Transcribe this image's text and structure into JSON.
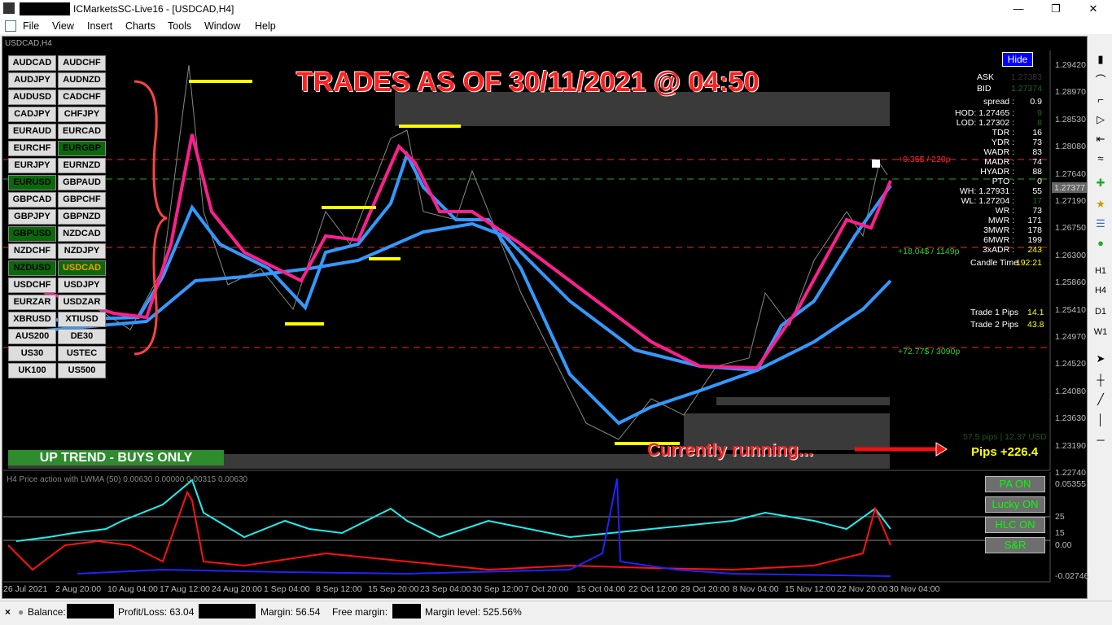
{
  "window": {
    "title": "ICMarketsSC-Live16 - [USDCAD,H4]",
    "controls": [
      "—",
      "❐",
      "✕"
    ]
  },
  "menu": [
    "File",
    "View",
    "Insert",
    "Charts",
    "Tools",
    "Window",
    "Help"
  ],
  "chart": {
    "label": "USDCAD,H4",
    "headline": "TRADES AS OF 30/11/2021 @ 04:50",
    "trend_banner": "UP TREND - BUYS ONLY",
    "running_text": "Currently running...",
    "pips_total": "Pips +226.4",
    "pips_usd": "57.5 pips | 12.37 USD",
    "line_labels": [
      "+18.04$ / 1149p",
      "+72.77$ / 3090p",
      "+0.35$ / 220p"
    ],
    "current_price": "1.27377",
    "price_ticks": [
      "1.29420",
      "1.28970",
      "1.28530",
      "1.28080",
      "1.27640",
      "1.27190",
      "1.26750",
      "1.26300",
      "1.25860",
      "1.25410",
      "1.24970",
      "1.24520",
      "1.24080",
      "1.23630",
      "1.23190",
      "1.22740"
    ],
    "date_ticks": [
      "26 Jul 2021",
      "2 Aug 20:00",
      "10 Aug 04:00",
      "17 Aug 12:00",
      "24 Aug 20:00",
      "1 Sep 04:00",
      "8 Sep 12:00",
      "15 Sep 20:00",
      "23 Sep 04:00",
      "30 Sep 12:00",
      "7 Oct 20:00",
      "15 Oct 04:00",
      "22 Oct 12:00",
      "29 Oct 20:00",
      "8 Nov 04:00",
      "15 Nov 12:00",
      "22 Nov 20:00",
      "30 Nov 04:00"
    ],
    "colors": {
      "bull_ma": "#3399ff",
      "bear_ma": "#ff1f8f",
      "arrow": "#ffff00",
      "headline": "#ff2020",
      "banner_bg": "#2e8b2e"
    }
  },
  "symbols": [
    [
      "AUDCAD",
      "AUDCHF"
    ],
    [
      "AUDJPY",
      "AUDNZD"
    ],
    [
      "AUDUSD",
      "CADCHF"
    ],
    [
      "CADJPY",
      "CHFJPY"
    ],
    [
      "EURAUD",
      "EURCAD"
    ],
    [
      "EURCHF",
      "EURGBP"
    ],
    [
      "EURJPY",
      "EURNZD"
    ],
    [
      "EURUSD",
      "GBPAUD"
    ],
    [
      "GBPCAD",
      "GBPCHF"
    ],
    [
      "GBPJPY",
      "GBPNZD"
    ],
    [
      "GBPUSD",
      "NZDCAD"
    ],
    [
      "NZDCHF",
      "NZDJPY"
    ],
    [
      "NZDUSD",
      "USDCAD"
    ],
    [
      "USDCHF",
      "USDJPY"
    ],
    [
      "EURZAR",
      "USDZAR"
    ],
    [
      "XBRUSD",
      "XTIUSD"
    ],
    [
      "AUS200",
      "DE30"
    ],
    [
      "US30",
      "USTEC"
    ],
    [
      "UK100",
      "US500"
    ]
  ],
  "active_symbols": [
    "EURGBP",
    "EURUSD",
    "GBPUSD",
    "NZDUSD",
    "USDCAD"
  ],
  "info_panel": {
    "hide": "Hide",
    "rows": [
      {
        "k": "ASK",
        "v": "1.27383"
      },
      {
        "k": "BID",
        "v": "1.27374"
      },
      {
        "k": "spread :",
        "v": "0.9"
      },
      {
        "k": "HOD: 1.27465 :",
        "v": "9"
      },
      {
        "k": "LOD: 1.27302 :",
        "v": "8"
      },
      {
        "k": "TDR :",
        "v": "16"
      },
      {
        "k": "YDR :",
        "v": "73"
      },
      {
        "k": "WADR :",
        "v": "83"
      },
      {
        "k": "MADR :",
        "v": "74"
      },
      {
        "k": "HYADR :",
        "v": "88"
      },
      {
        "k": "PTO :",
        "v": "0"
      },
      {
        "k": "WH: 1.27931 :",
        "v": "55"
      },
      {
        "k": "WL: 1.27204 :",
        "v": "17"
      },
      {
        "k": "WR :",
        "v": "73"
      },
      {
        "k": "MWR :",
        "v": "171"
      },
      {
        "k": "3MWR :",
        "v": "178"
      },
      {
        "k": "6MWR :",
        "v": "199"
      },
      {
        "k": "3xADR :",
        "v": "243"
      },
      {
        "k": "Candle Time",
        "v": "192:21"
      }
    ],
    "trades": [
      {
        "k": "Trade 1 Pips",
        "v": "14.1"
      },
      {
        "k": "Trade 2 Pips",
        "v": "43.8"
      }
    ]
  },
  "indicator": {
    "label": "H4 Price action with LWMA (50) 0.00630 0.00000 0.00315 0.00630",
    "ticks": [
      "0.05355",
      "25",
      "15",
      "0.00",
      "-0.02746"
    ],
    "buttons": [
      "PA ON",
      "Lucky ON",
      "HLC ON",
      "S&R"
    ]
  },
  "toolbar": {
    "timeframes": [
      "H1",
      "H4",
      "D1",
      "W1"
    ]
  },
  "status": {
    "balance": "Balance:",
    "pl": "Profit/Loss: 63.04",
    "margin": "Margin: 56.54",
    "free": "Free margin:",
    "level": "Margin level: 525.56%"
  }
}
